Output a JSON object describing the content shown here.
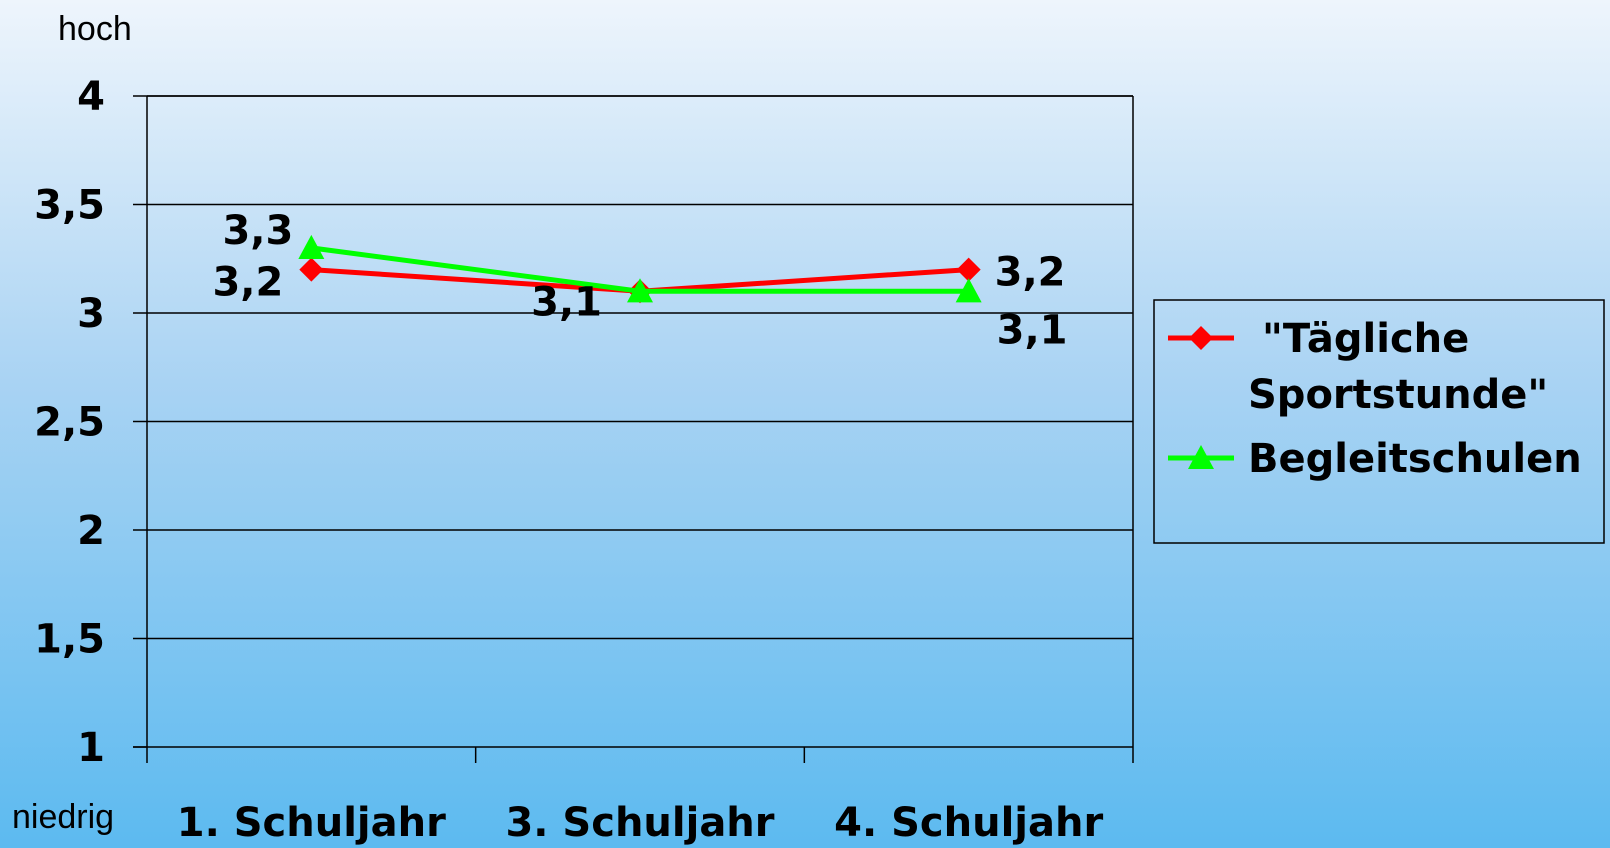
{
  "chart_data": {
    "type": "line",
    "categories": [
      "1. Schuljahr",
      "3. Schuljahr",
      "4. Schuljahr"
    ],
    "series": [
      {
        "name": "\"Tägliche Sportstunde\"",
        "values": [
          3.2,
          3.1,
          3.2
        ],
        "color": "#ff0000",
        "marker": "diamond"
      },
      {
        "name": "Begleitschulen",
        "values": [
          3.3,
          3.1,
          3.1
        ],
        "color": "#00ff00",
        "marker": "triangle"
      }
    ],
    "yticks": [
      "1",
      "1,5",
      "2",
      "2,5",
      "3",
      "3,5",
      "4"
    ],
    "ylim": [
      1,
      4
    ],
    "y_top_annotation": "hoch",
    "y_bottom_annotation": "niedrig",
    "data_labels": [
      [
        "3,2",
        "3,1",
        "3,2"
      ],
      [
        "3,3",
        "",
        "3,1"
      ]
    ],
    "grid": true,
    "legend_position": "right"
  }
}
